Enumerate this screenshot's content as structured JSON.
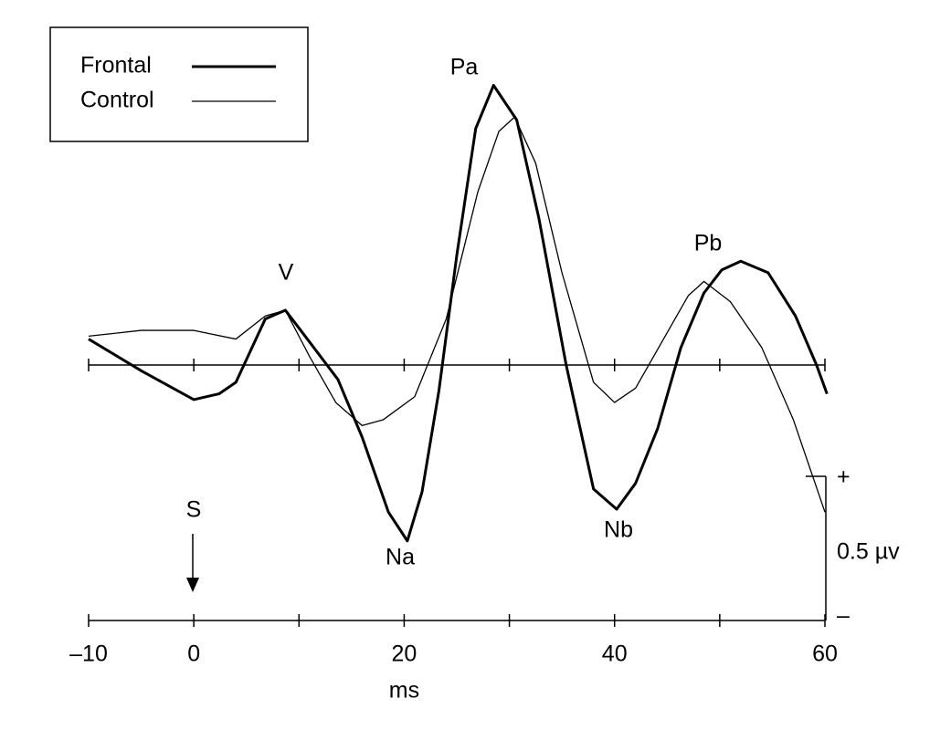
{
  "chart_data": {
    "type": "line",
    "x_label": "ms",
    "xlim": [
      -10,
      60
    ],
    "ylim": [
      -0.9,
      1.0
    ],
    "xticks": [
      {
        "value": -10,
        "label": "–10"
      },
      0,
      20,
      40,
      60
    ],
    "minor_xticks": [
      10,
      30,
      50
    ],
    "series": [
      {
        "name": "Frontal",
        "color": "#000000",
        "x": [
          -10,
          -5,
          0,
          2.4,
          4,
          6.8,
          8.7,
          11,
          13.7,
          16,
          18.5,
          20.3,
          21.7,
          23.3,
          25,
          26.8,
          28.5,
          30.7,
          32.8,
          35.4,
          38,
          40.2,
          42,
          44.1,
          46.3,
          48.5,
          50.2,
          52,
          54.6,
          57.2,
          59.2,
          60.2
        ],
        "values": [
          0.09,
          -0.02,
          -0.12,
          -0.1,
          -0.06,
          0.16,
          0.19,
          0.08,
          -0.05,
          -0.25,
          -0.51,
          -0.61,
          -0.44,
          -0.09,
          0.38,
          0.82,
          0.97,
          0.85,
          0.51,
          0,
          -0.43,
          -0.5,
          -0.41,
          -0.22,
          0.06,
          0.25,
          0.33,
          0.36,
          0.32,
          0.17,
          0,
          -0.1
        ]
      },
      {
        "name": "Control",
        "color": "#000000",
        "x": [
          -10,
          -5,
          0,
          4,
          6.8,
          8.7,
          11,
          13.5,
          16,
          18,
          21,
          24,
          27,
          29,
          30.5,
          32.5,
          35,
          38,
          40,
          42,
          44.5,
          47,
          48.5,
          51,
          54,
          57,
          60
        ],
        "values": [
          0.1,
          0.12,
          0.12,
          0.09,
          0.17,
          0.19,
          0.03,
          -0.13,
          -0.21,
          -0.19,
          -0.11,
          0.16,
          0.6,
          0.81,
          0.86,
          0.7,
          0.32,
          -0.06,
          -0.13,
          -0.08,
          0.08,
          0.24,
          0.29,
          0.22,
          0.06,
          -0.19,
          -0.51
        ]
      }
    ],
    "annotations": [
      "V",
      "Na",
      "Pa",
      "Nb",
      "Pb",
      "S"
    ],
    "scale_bar": {
      "value": 0.5,
      "label": "0.5 µv",
      "plus": "+",
      "minus": "–"
    }
  }
}
